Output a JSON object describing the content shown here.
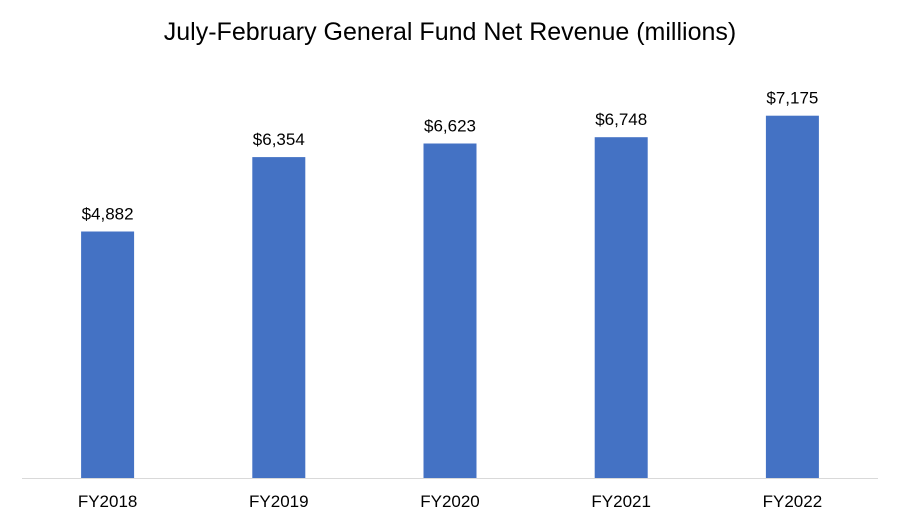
{
  "chart_data": {
    "type": "bar",
    "title": "July-February General Fund Net Revenue (millions)",
    "categories": [
      "FY2018",
      "FY2019",
      "FY2020",
      "FY2021",
      "FY2022"
    ],
    "values": [
      4882,
      6354,
      6623,
      6748,
      7175
    ],
    "data_labels": [
      "$4,882",
      "$6,354",
      "$6,623",
      "$6,748",
      "$7,175"
    ],
    "xlabel": "",
    "ylabel": "",
    "ylim": [
      0,
      7500
    ],
    "grid": false,
    "legend": "none",
    "bar_color": "#4472C4",
    "axis_color": "#D9D9D9"
  }
}
